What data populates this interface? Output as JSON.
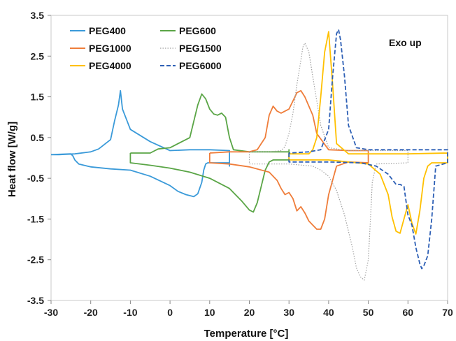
{
  "chart_data": {
    "type": "line",
    "xlabel": "Temperature [°C]",
    "ylabel": "Heat flow [W/g]",
    "xlim": [
      -30,
      70
    ],
    "ylim": [
      -3.5,
      3.5
    ],
    "x_ticks": [
      "-30",
      "-20",
      "-10",
      "0",
      "10",
      "20",
      "30",
      "40",
      "50",
      "60",
      "70"
    ],
    "y_ticks": [
      "3.5",
      "2.5",
      "1.5",
      "0.5",
      "-0.5",
      "-1.5",
      "-2.5",
      "-3.5"
    ],
    "annotation": "Exo up",
    "legend_position": "top-left",
    "series": [
      {
        "name": "PEG400",
        "color": "#3a9ad9",
        "dash": "solid",
        "x": [
          -30,
          -25,
          -24.5,
          -24,
          -23,
          -20,
          -15,
          -10,
          -5,
          0,
          2,
          4,
          6,
          7,
          8,
          8.5,
          9,
          9.5,
          9.5,
          15,
          15,
          15,
          10,
          10,
          10,
          5,
          0,
          -5,
          -10,
          -12,
          -12.5,
          -13,
          -14,
          -15,
          -18,
          -20,
          -24,
          -28,
          -30
        ],
        "y": [
          0.08,
          0.1,
          0.05,
          -0.05,
          -0.15,
          -0.22,
          -0.27,
          -0.3,
          -0.45,
          -0.68,
          -0.82,
          -0.9,
          -0.95,
          -0.88,
          -0.6,
          -0.3,
          -0.15,
          -0.12,
          -0.12,
          -0.12,
          -0.2,
          0.18,
          0.2,
          0.2,
          0.2,
          0.2,
          0.18,
          0.4,
          0.7,
          1.2,
          1.65,
          1.3,
          0.9,
          0.45,
          0.22,
          0.15,
          0.1,
          0.08,
          0.08
        ]
      },
      {
        "name": "PEG600",
        "color": "#5aa546",
        "dash": "solid",
        "x": [
          -10,
          -10,
          -5,
          0,
          5,
          10,
          15,
          18,
          20,
          21,
          22,
          23,
          24,
          25,
          26,
          30,
          30,
          30,
          25,
          20,
          16,
          15,
          14,
          13,
          12,
          11,
          10,
          9,
          8,
          7,
          5,
          0,
          -3,
          -5,
          -10
        ],
        "y": [
          0.12,
          -0.12,
          -0.18,
          -0.25,
          -0.35,
          -0.5,
          -0.75,
          -1.05,
          -1.28,
          -1.33,
          -1.1,
          -0.7,
          -0.3,
          -0.1,
          -0.05,
          -0.05,
          0.2,
          0.15,
          0.15,
          0.15,
          0.2,
          0.5,
          1.0,
          1.1,
          1.05,
          1.08,
          1.2,
          1.45,
          1.57,
          1.3,
          0.5,
          0.25,
          0.22,
          0.12,
          0.12
        ]
      },
      {
        "name": "PEG1000",
        "color": "#ef7d3a",
        "dash": "solid",
        "x": [
          10,
          10,
          15,
          20,
          25,
          27,
          28,
          29,
          30,
          31,
          32,
          33,
          34,
          35,
          37,
          38,
          39,
          40,
          42,
          45,
          50,
          50,
          50,
          45,
          40,
          37,
          36,
          34,
          33,
          32,
          31,
          30,
          28,
          27,
          26,
          25,
          24,
          22,
          20,
          15,
          10
        ],
        "y": [
          0.12,
          -0.12,
          -0.15,
          -0.22,
          -0.35,
          -0.55,
          -0.75,
          -0.9,
          -0.85,
          -1.0,
          -1.3,
          -1.2,
          -1.35,
          -1.55,
          -1.75,
          -1.75,
          -1.5,
          -0.9,
          -0.2,
          -0.1,
          -0.12,
          0.18,
          0.18,
          0.18,
          0.2,
          0.6,
          1.05,
          1.5,
          1.65,
          1.6,
          1.4,
          1.2,
          1.1,
          1.15,
          1.27,
          1.05,
          0.5,
          0.2,
          0.15,
          0.15,
          0.12
        ]
      },
      {
        "name": "PEG1500",
        "color": "#a0a0a0",
        "dash": "dotted",
        "x": [
          20,
          20,
          30,
          36,
          38,
          40,
          42,
          44,
          46,
          47,
          48,
          49,
          50,
          50.5,
          51,
          52,
          60,
          60,
          60,
          55,
          45,
          40,
          38,
          36,
          35,
          34,
          33.5,
          33,
          32,
          31,
          30,
          29,
          28,
          25,
          20
        ],
        "y": [
          0.15,
          -0.15,
          -0.15,
          -0.2,
          -0.3,
          -0.45,
          -0.8,
          -1.4,
          -2.2,
          -2.7,
          -2.92,
          -3.0,
          -2.5,
          -1.6,
          -0.6,
          -0.15,
          -0.12,
          0.18,
          0.18,
          0.18,
          0.18,
          0.25,
          0.8,
          2.0,
          2.6,
          2.82,
          2.72,
          2.4,
          1.8,
          1.1,
          0.6,
          0.28,
          0.18,
          0.15,
          0.15
        ]
      },
      {
        "name": "PEG4000",
        "color": "#ffc000",
        "dash": "solid",
        "x": [
          30,
          30,
          40,
          45,
          50,
          53,
          55,
          56,
          57,
          58,
          59,
          60,
          61,
          62,
          63,
          64,
          65,
          66,
          70,
          70,
          70,
          60,
          50,
          45,
          42,
          41,
          40,
          39,
          38,
          37,
          36,
          35,
          30
        ],
        "y": [
          0.1,
          -0.05,
          -0.05,
          -0.1,
          -0.15,
          -0.4,
          -0.9,
          -1.45,
          -1.8,
          -1.85,
          -1.5,
          -1.15,
          -1.6,
          -1.87,
          -1.3,
          -0.5,
          -0.2,
          -0.12,
          -0.12,
          0.12,
          0.12,
          0.1,
          0.1,
          0.1,
          0.35,
          1.8,
          3.1,
          2.6,
          1.5,
          0.5,
          0.2,
          0.1,
          0.1
        ]
      },
      {
        "name": "PEG6000",
        "color": "#2d5fb5",
        "dash": "dashed",
        "x": [
          30,
          30,
          40,
          48,
          52,
          55,
          57,
          58,
          59,
          60,
          61,
          62,
          63,
          63.5,
          64,
          65,
          66,
          67,
          70,
          70,
          70,
          60,
          50,
          47,
          45,
          44,
          43,
          42.5,
          42,
          41,
          40,
          38,
          35,
          30
        ],
        "y": [
          0.12,
          -0.1,
          -0.1,
          -0.12,
          -0.2,
          -0.4,
          -0.65,
          -0.65,
          -0.7,
          -1.4,
          -1.65,
          -2.2,
          -2.6,
          -2.72,
          -2.65,
          -2.4,
          -1.5,
          -0.2,
          -0.12,
          0.2,
          0.2,
          0.2,
          0.2,
          0.25,
          0.8,
          2.0,
          2.9,
          3.15,
          3.05,
          2.0,
          0.7,
          0.2,
          0.15,
          0.12
        ]
      }
    ]
  }
}
